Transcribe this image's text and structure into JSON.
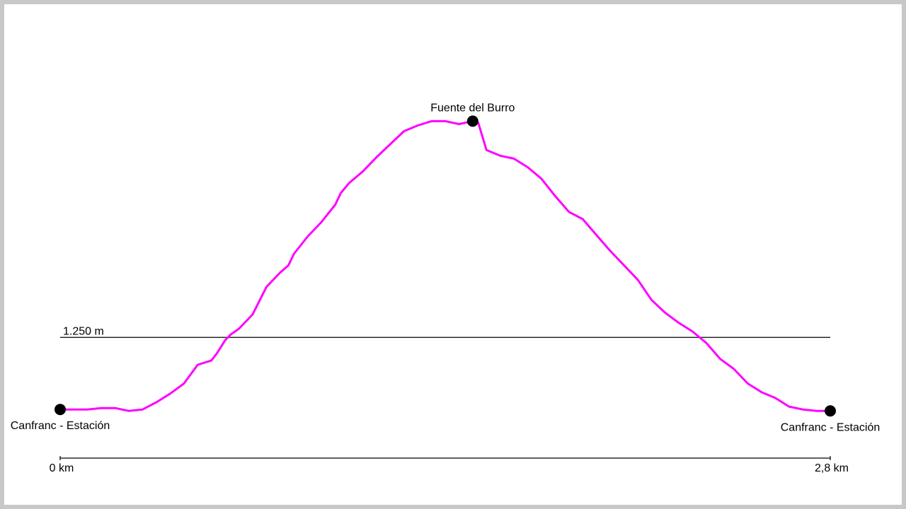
{
  "chart_data": {
    "type": "line",
    "title": "",
    "xlabel": "",
    "ylabel": "",
    "x_unit": "km",
    "y_unit": "m",
    "xlim": [
      0,
      2.8
    ],
    "ylim": [
      1180,
      1435
    ],
    "reference_lines": [
      {
        "y": 1250,
        "label": "1.250 m"
      }
    ],
    "x_axis_labels": [
      {
        "x": 0,
        "label": "0 km"
      },
      {
        "x": 2.8,
        "label": "2,8 km"
      }
    ],
    "waypoints": [
      {
        "x": 0,
        "y": 1200,
        "label": "Canfranc - Estación"
      },
      {
        "x": 1.5,
        "y": 1400,
        "label": "Fuente del Burro"
      },
      {
        "x": 2.8,
        "y": 1199,
        "label": "Canfranc - Estación"
      }
    ],
    "series": [
      {
        "color": "#ff00ff",
        "x": [
          0.0,
          0.05,
          0.1,
          0.15,
          0.2,
          0.25,
          0.3,
          0.32,
          0.35,
          0.4,
          0.45,
          0.5,
          0.55,
          0.57,
          0.6,
          0.62,
          0.65,
          0.7,
          0.75,
          0.8,
          0.83,
          0.85,
          0.9,
          0.95,
          1.0,
          1.02,
          1.05,
          1.1,
          1.15,
          1.2,
          1.25,
          1.3,
          1.35,
          1.4,
          1.45,
          1.5,
          1.52,
          1.55,
          1.6,
          1.65,
          1.7,
          1.75,
          1.8,
          1.85,
          1.9,
          1.95,
          2.0,
          2.05,
          2.1,
          2.15,
          2.2,
          2.25,
          2.3,
          2.35,
          2.4,
          2.45,
          2.5,
          2.55,
          2.6,
          2.65,
          2.7,
          2.75,
          2.8
        ],
        "y": [
          1200,
          1200,
          1200,
          1201,
          1201,
          1199,
          1200,
          1202,
          1205,
          1211,
          1218,
          1231,
          1234,
          1239,
          1248,
          1252,
          1256,
          1266,
          1285,
          1295,
          1300,
          1308,
          1320,
          1330,
          1342,
          1350,
          1357,
          1365,
          1375,
          1384,
          1393,
          1397,
          1400,
          1400,
          1398,
          1400,
          1399,
          1380,
          1376,
          1374,
          1368,
          1360,
          1348,
          1337,
          1332,
          1321,
          1310,
          1300,
          1290,
          1276,
          1267,
          1260,
          1254,
          1246,
          1235,
          1228,
          1218,
          1212,
          1208,
          1202,
          1200,
          1199,
          1199
        ]
      }
    ],
    "grid": false,
    "legend": false
  }
}
